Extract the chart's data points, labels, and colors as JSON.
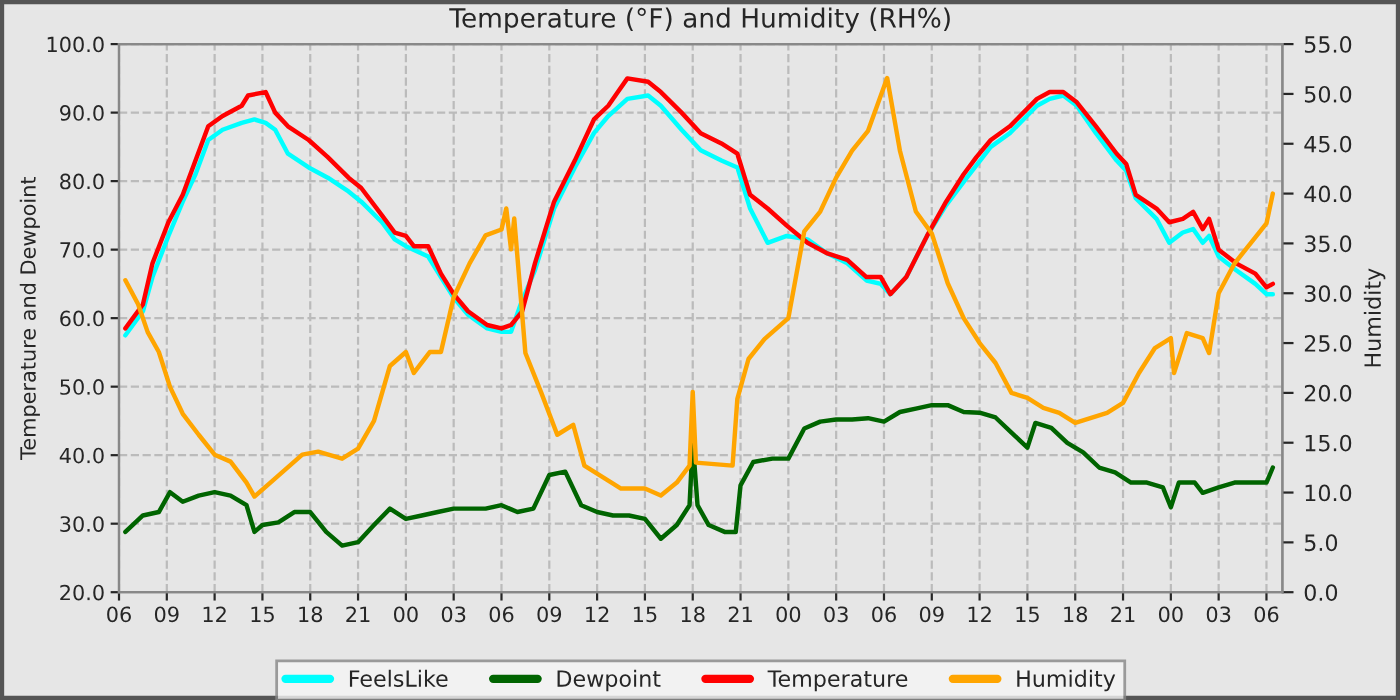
{
  "chart_data": {
    "type": "line",
    "title": "Temperature (°F) and Humidity (RH%)",
    "ylabel": "Temperature and Dewpoint",
    "y2label": "Humidity",
    "xlim": [
      6,
      79
    ],
    "xticks": [
      {
        "value": 6,
        "label": "06"
      },
      {
        "value": 9,
        "label": "09"
      },
      {
        "value": 12,
        "label": "12"
      },
      {
        "value": 15,
        "label": "15"
      },
      {
        "value": 18,
        "label": "18"
      },
      {
        "value": 21,
        "label": "21"
      },
      {
        "value": 24,
        "label": "00"
      },
      {
        "value": 27,
        "label": "03"
      },
      {
        "value": 30,
        "label": "06"
      },
      {
        "value": 33,
        "label": "09"
      },
      {
        "value": 36,
        "label": "12"
      },
      {
        "value": 39,
        "label": "15"
      },
      {
        "value": 42,
        "label": "18"
      },
      {
        "value": 45,
        "label": "21"
      },
      {
        "value": 48,
        "label": "00"
      },
      {
        "value": 51,
        "label": "03"
      },
      {
        "value": 54,
        "label": "06"
      },
      {
        "value": 57,
        "label": "09"
      },
      {
        "value": 60,
        "label": "12"
      },
      {
        "value": 63,
        "label": "15"
      },
      {
        "value": 66,
        "label": "18"
      },
      {
        "value": 69,
        "label": "21"
      },
      {
        "value": 72,
        "label": "00"
      },
      {
        "value": 75,
        "label": "03"
      },
      {
        "value": 78,
        "label": "06"
      }
    ],
    "ylim": [
      20,
      100
    ],
    "yticks": [
      {
        "value": 20,
        "label": "20.0"
      },
      {
        "value": 30,
        "label": "30.0"
      },
      {
        "value": 40,
        "label": "40.0"
      },
      {
        "value": 50,
        "label": "50.0"
      },
      {
        "value": 60,
        "label": "60.0"
      },
      {
        "value": 70,
        "label": "70.0"
      },
      {
        "value": 80,
        "label": "80.0"
      },
      {
        "value": 90,
        "label": "90.0"
      },
      {
        "value": 100,
        "label": "100.0"
      }
    ],
    "y2lim": [
      0,
      55
    ],
    "y2ticks": [
      {
        "value": 0,
        "label": "0.0"
      },
      {
        "value": 5,
        "label": "5.0"
      },
      {
        "value": 10,
        "label": "10.0"
      },
      {
        "value": 15,
        "label": "15.0"
      },
      {
        "value": 20,
        "label": "20.0"
      },
      {
        "value": 25,
        "label": "25.0"
      },
      {
        "value": 30,
        "label": "30.0"
      },
      {
        "value": 35,
        "label": "35.0"
      },
      {
        "value": 40,
        "label": "40.0"
      },
      {
        "value": 45,
        "label": "45.0"
      },
      {
        "value": 50,
        "label": "50.0"
      },
      {
        "value": 55,
        "label": "55.0"
      }
    ],
    "grid": true,
    "legend": "bottom",
    "marker": "none",
    "line_style": "solid",
    "series": [
      {
        "name": "FeelsLike",
        "color": "#00ffff",
        "x": [
          6.4,
          7.5,
          8.1,
          9.1,
          10,
          10.8,
          11.6,
          12.5,
          13.7,
          14.5,
          15.2,
          15.8,
          16.6,
          17.9,
          19.1,
          20.4,
          21.2,
          22.5,
          23.3,
          24,
          25.4,
          26.2,
          27,
          27.9,
          29.1,
          30,
          30.6,
          31.2,
          32.1,
          33.3,
          34.6,
          35.8,
          36.7,
          37.9,
          39.2,
          40,
          41.3,
          42.5,
          43.8,
          44.8,
          45.6,
          46.7,
          47.9,
          49.2,
          50.4,
          51.7,
          52.9,
          53.8,
          54.4,
          55.4,
          56.7,
          57.9,
          59.2,
          60.7,
          61.9,
          62.75,
          63.6,
          64.4,
          65.25,
          66.1,
          67.3,
          68.6,
          69.2,
          69.8,
          71.1,
          71.9,
          72.75,
          73.4,
          74,
          74.4,
          75,
          76.1,
          77.3,
          78,
          78.4
        ],
        "values": [
          57.5,
          61,
          66,
          72,
          77,
          81,
          86,
          87.5,
          88.5,
          89,
          88.5,
          87.5,
          84,
          82,
          80.5,
          78.5,
          77,
          74,
          71.5,
          70.5,
          69,
          66,
          63,
          60.5,
          58.5,
          58,
          58,
          62,
          67,
          76,
          82,
          87,
          89.5,
          92,
          92.5,
          91,
          87.5,
          84.5,
          83,
          82,
          76,
          71,
          72,
          71.5,
          69.5,
          68,
          65.5,
          65,
          63.5,
          66,
          72,
          76.5,
          80.5,
          85,
          87,
          89,
          91,
          92,
          92.5,
          91,
          87,
          83,
          81.5,
          77.5,
          74.5,
          71,
          72.5,
          73,
          71,
          72,
          69,
          67,
          65,
          63.5,
          63.5
        ]
      },
      {
        "name": "Dewpoint",
        "color": "#006400",
        "x": [
          6.4,
          7.5,
          8.5,
          9.2,
          10,
          11,
          12,
          13,
          14,
          14.5,
          15,
          16,
          17,
          18,
          19,
          20,
          21,
          22,
          23,
          24,
          25,
          26,
          27,
          28,
          29,
          30,
          31,
          32,
          33,
          34,
          35,
          36,
          37,
          38,
          39,
          40,
          41,
          41.8,
          42,
          42.3,
          43,
          44,
          44.7,
          45,
          45.8,
          47,
          48,
          49,
          50,
          51,
          52,
          53,
          54,
          55,
          56,
          57,
          58,
          59,
          60,
          61,
          62,
          63,
          63.5,
          64.5,
          65.5,
          66.5,
          67.5,
          68.5,
          69.5,
          70.5,
          71.5,
          72,
          72.5,
          73.5,
          74,
          75,
          76,
          77,
          78,
          78.4
        ],
        "values": [
          28.8,
          31.2,
          31.7,
          34.6,
          33.2,
          34.1,
          34.6,
          34.1,
          32.7,
          28.8,
          29.8,
          30.2,
          31.7,
          31.7,
          28.8,
          26.8,
          27.3,
          29.8,
          32.2,
          30.7,
          31.2,
          31.7,
          32.2,
          32.2,
          32.2,
          32.7,
          31.7,
          32.2,
          37.1,
          37.6,
          32.7,
          31.7,
          31.2,
          31.2,
          30.7,
          27.8,
          29.8,
          32.7,
          42,
          32.7,
          29.8,
          28.8,
          28.8,
          35.6,
          39,
          39.5,
          39.5,
          43.9,
          44.9,
          45.2,
          45.2,
          45.4,
          44.9,
          46.3,
          46.8,
          47.3,
          47.3,
          46.3,
          46.2,
          45.5,
          43.3,
          41.1,
          44.7,
          44,
          41.8,
          40.4,
          38.2,
          37.5,
          36,
          36,
          35.3,
          32.4,
          36,
          36,
          34.5,
          35.3,
          36,
          36,
          36,
          38.2
        ]
      },
      {
        "name": "Temperature",
        "color": "#ff0000",
        "x": [
          6.4,
          7.5,
          8.1,
          9.1,
          10,
          10.8,
          11.6,
          12.5,
          13.7,
          14.1,
          15.2,
          15.8,
          16.6,
          17.9,
          19.1,
          20.4,
          21.2,
          22.5,
          23.3,
          24,
          24.5,
          25.4,
          26.2,
          27,
          27.9,
          29.1,
          30,
          30.6,
          31.3,
          32.1,
          33.3,
          34.6,
          35.8,
          36.7,
          37.3,
          37.9,
          39.2,
          40,
          41.3,
          42.5,
          43.8,
          44.8,
          45.6,
          46.7,
          47.9,
          49.2,
          50.4,
          51.7,
          52.9,
          53.8,
          54.4,
          55.4,
          56.7,
          57.9,
          59,
          59.8,
          60.7,
          61.9,
          62.75,
          63.6,
          64.4,
          65.25,
          66.1,
          67.3,
          68.6,
          69.2,
          69.8,
          71.1,
          71.9,
          72.75,
          73.4,
          74,
          74.4,
          75,
          76.1,
          77.3,
          78,
          78.4
        ],
        "values": [
          58.5,
          62,
          68,
          74,
          78,
          83,
          88,
          89.5,
          91,
          92.5,
          93,
          90,
          88,
          86,
          83.5,
          80.5,
          79,
          75,
          72.5,
          72,
          70.5,
          70.5,
          66.5,
          63.5,
          61,
          59,
          58.5,
          59,
          61,
          68,
          77,
          83,
          89,
          91,
          93,
          95,
          94.5,
          93,
          90,
          87,
          85.5,
          84,
          78,
          76,
          73.5,
          71,
          69.5,
          68.5,
          66,
          66,
          63.5,
          66,
          72,
          77,
          81,
          83.5,
          86,
          88,
          90,
          92,
          93,
          93,
          91.5,
          88,
          84,
          82.5,
          78,
          76,
          74,
          74.5,
          75.5,
          73,
          74.5,
          70,
          68,
          66.5,
          64.5,
          65
        ]
      },
      {
        "name": "Humidity",
        "color": "#ffa500",
        "axis": "y2",
        "x": [
          6.4,
          7.2,
          7.8,
          8.5,
          9.2,
          10,
          11,
          12,
          13,
          14,
          14.5,
          15.5,
          16.5,
          17.5,
          18.5,
          20,
          21,
          22,
          23,
          24,
          24.5,
          25.5,
          26.2,
          27,
          28,
          29,
          30,
          30.3,
          30.6,
          30.8,
          31.5,
          32.5,
          33.5,
          34.5,
          35.2,
          36.5,
          37.5,
          39,
          40,
          41,
          41.8,
          42,
          42.2,
          44.5,
          44.8,
          45.5,
          46.5,
          48,
          49,
          50,
          51,
          52,
          53,
          54.2,
          55,
          56,
          57,
          58,
          59,
          60,
          61,
          62,
          63,
          64,
          65,
          66,
          67,
          68,
          69,
          70,
          71,
          72,
          72.2,
          73,
          74,
          74.4,
          75,
          76,
          77,
          78,
          78.4
        ],
        "values": [
          31.3,
          28.9,
          26.1,
          24.1,
          20.6,
          17.9,
          15.8,
          13.8,
          13.1,
          11,
          9.6,
          11,
          12.4,
          13.8,
          14.1,
          13.4,
          14.4,
          17.2,
          22.7,
          24.1,
          22,
          24.1,
          24.1,
          29.6,
          33,
          35.8,
          36.4,
          38.5,
          34.4,
          37.5,
          24,
          20,
          15.8,
          16.8,
          12.7,
          11.4,
          10.4,
          10.4,
          9.7,
          11,
          12.7,
          20.1,
          13,
          12.7,
          19.4,
          23.4,
          25.4,
          27.5,
          36.2,
          38.2,
          41.6,
          44.3,
          46.3,
          51.6,
          44.3,
          38.2,
          36,
          31,
          27.5,
          25,
          23,
          20,
          19.5,
          18.5,
          18,
          17,
          17.5,
          18,
          19,
          22,
          24.5,
          25.5,
          22,
          26,
          25.5,
          24,
          30,
          33,
          35,
          37,
          40
        ]
      }
    ]
  }
}
